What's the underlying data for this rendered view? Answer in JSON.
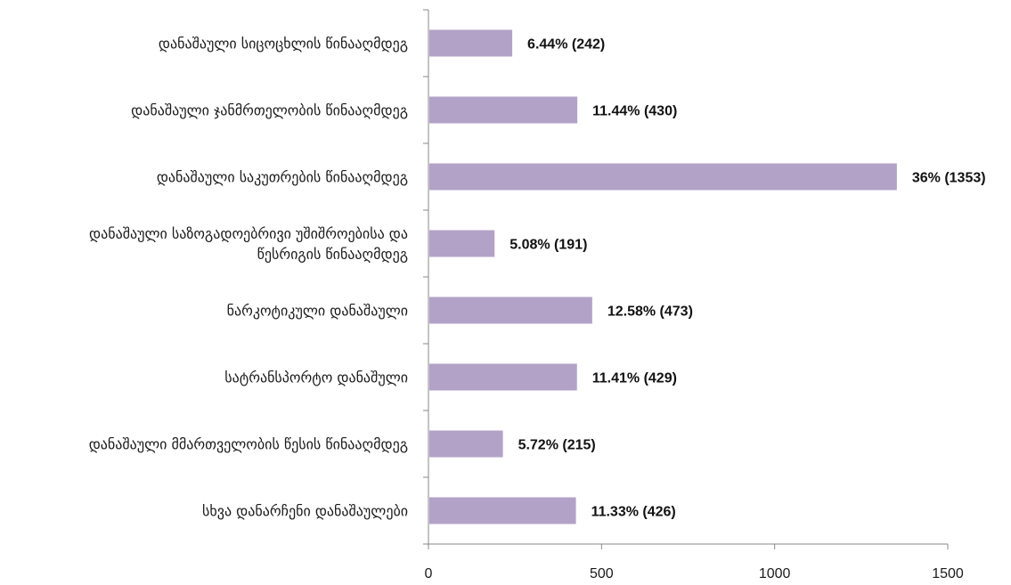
{
  "chart_data": {
    "type": "bar",
    "orientation": "horizontal",
    "categories": [
      [
        "დანაშაული სიცოცხლის წინააღმდეგ"
      ],
      [
        "დანაშაული ჯანმრთელობის წინააღმდეგ"
      ],
      [
        "დანაშაული საკუთრების წინააღმდეგ"
      ],
      [
        "დანაშაული საზოგადოებრივი უშიშროებისა და",
        "წესრიგის წინააღმდეგ"
      ],
      [
        "ნარკოტიკული დანაშაული"
      ],
      [
        "სატრანსპორტო დანაშული"
      ],
      [
        "დანაშაული მმართველობის წესის წინააღმდეგ"
      ],
      [
        "სხვა დანარჩენი დანაშაულები"
      ]
    ],
    "values": [
      242,
      430,
      1353,
      191,
      473,
      429,
      215,
      426
    ],
    "data_labels": [
      "6.44% (242)",
      "11.44% (430)",
      "36%  (1353)",
      "5.08%  (191)",
      "12.58%  (473)",
      "11.41%  (429)",
      "5.72%  (215)",
      "11.33%  (426)"
    ],
    "xlim": [
      0,
      1500
    ],
    "x_ticks": [
      0,
      500,
      1000,
      1500
    ],
    "x_tick_labels": [
      "0",
      "500",
      "1000",
      "1500"
    ],
    "grid": false,
    "legend": "none",
    "bar_color": "#b3a2c7",
    "axis_color": "#888888"
  }
}
